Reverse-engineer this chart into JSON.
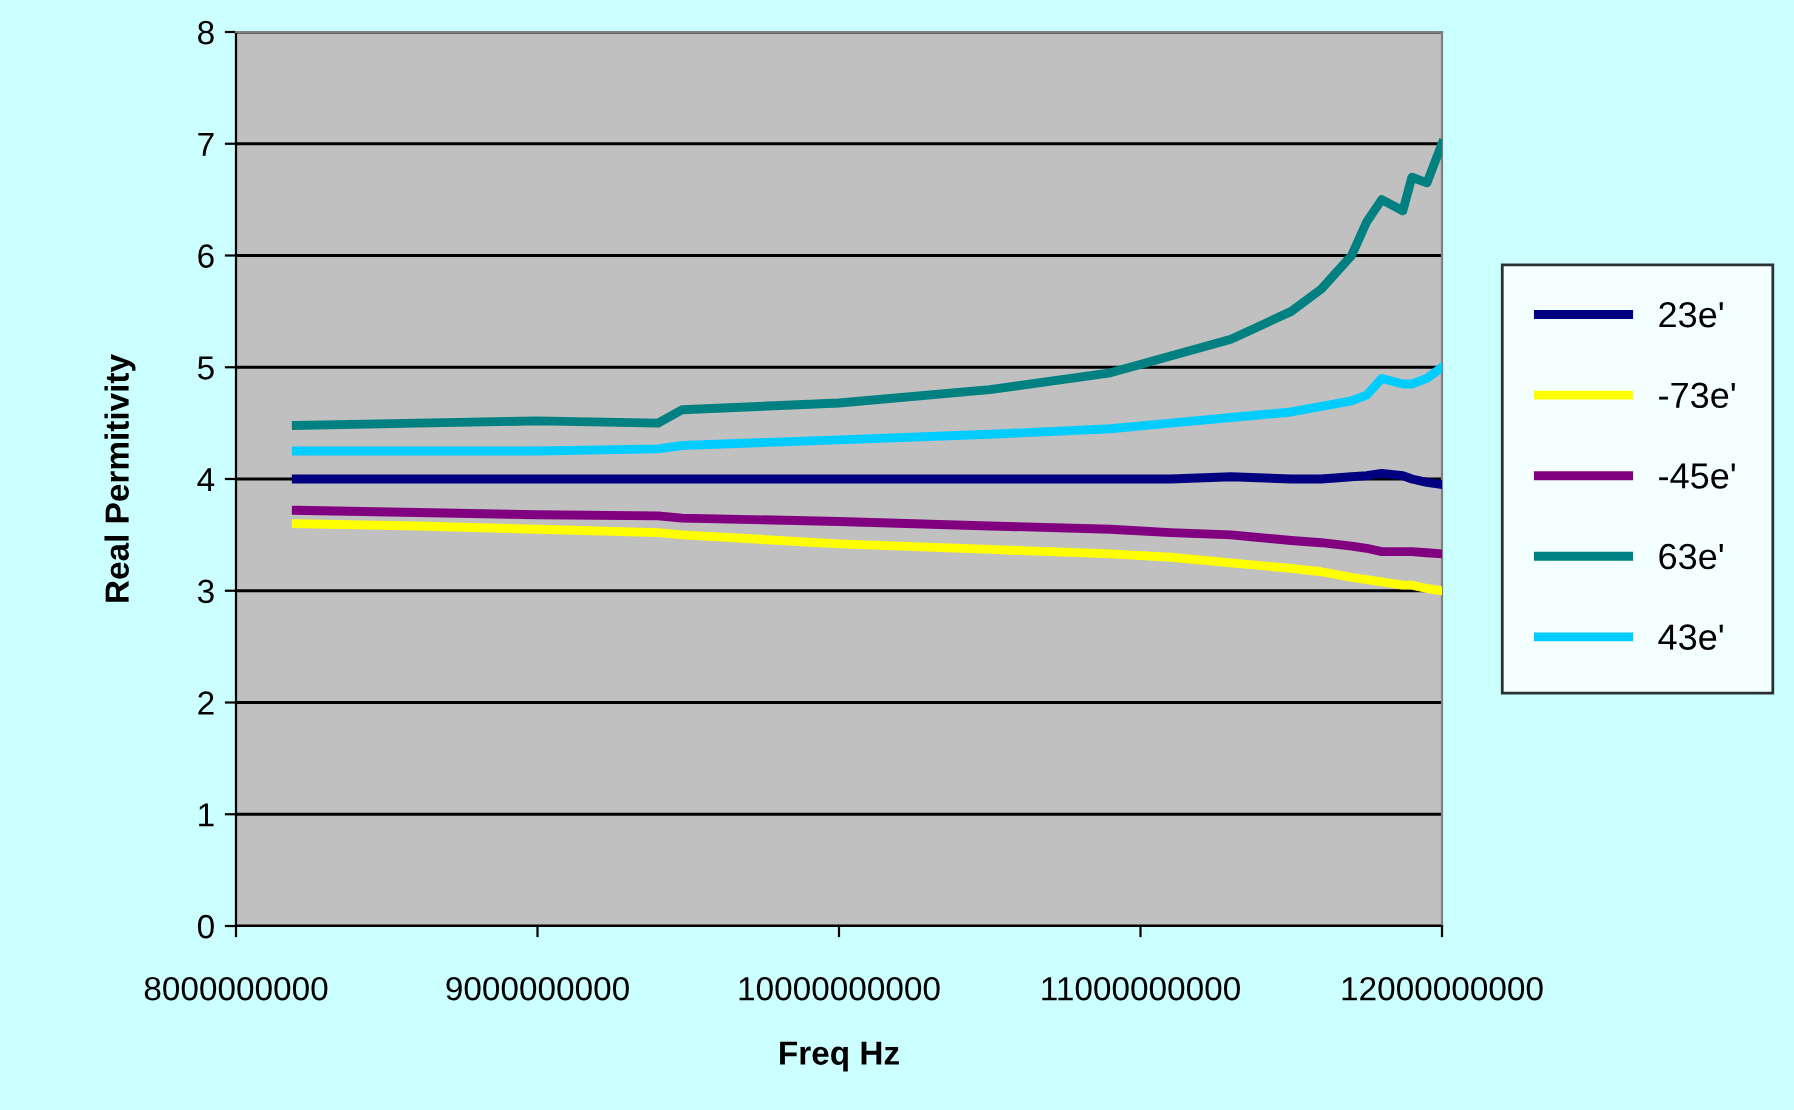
{
  "chart_data": {
    "type": "line",
    "xlabel": "Freq Hz",
    "ylabel": "Real Permitivity",
    "x": [
      8200000000,
      8600000000,
      9000000000,
      9400000000,
      9480000000,
      10000000000,
      10500000000,
      10900000000,
      11100000000,
      11300000000,
      11500000000,
      11600000000,
      11700000000,
      11750000000,
      11800000000,
      11870000000,
      11900000000,
      11950000000,
      12000000000
    ],
    "series": [
      {
        "name": "23e'",
        "color": "#000080",
        "values": [
          4.0,
          4.0,
          4.0,
          4.0,
          4.0,
          4.0,
          4.0,
          4.0,
          4.0,
          4.02,
          4.0,
          4.0,
          4.02,
          4.03,
          4.05,
          4.03,
          4.0,
          3.97,
          3.95
        ]
      },
      {
        "name": "-73e'",
        "color": "#ffff00",
        "values": [
          3.6,
          3.58,
          3.55,
          3.52,
          3.5,
          3.42,
          3.37,
          3.33,
          3.3,
          3.25,
          3.2,
          3.17,
          3.12,
          3.1,
          3.08,
          3.05,
          3.05,
          3.02,
          3.0
        ]
      },
      {
        "name": "-45e'",
        "color": "#800080",
        "values": [
          3.72,
          3.7,
          3.68,
          3.67,
          3.65,
          3.62,
          3.58,
          3.55,
          3.52,
          3.5,
          3.45,
          3.43,
          3.4,
          3.38,
          3.35,
          3.35,
          3.35,
          3.34,
          3.33
        ]
      },
      {
        "name": "63e'",
        "color": "#008080",
        "values": [
          4.48,
          4.5,
          4.52,
          4.5,
          4.62,
          4.68,
          4.8,
          4.95,
          5.1,
          5.25,
          5.5,
          5.7,
          6.0,
          6.3,
          6.5,
          6.4,
          6.7,
          6.65,
          7.0
        ]
      },
      {
        "name": "43e'",
        "color": "#00ccff",
        "values": [
          4.25,
          4.25,
          4.25,
          4.27,
          4.3,
          4.35,
          4.4,
          4.45,
          4.5,
          4.55,
          4.6,
          4.65,
          4.7,
          4.75,
          4.9,
          4.85,
          4.85,
          4.9,
          5.0
        ]
      }
    ],
    "xlim": [
      8000000000,
      12000000000
    ],
    "xticks": [
      8000000000,
      9000000000,
      10000000000,
      11000000000,
      12000000000
    ],
    "ylim": [
      0,
      8
    ],
    "yticks": [
      0,
      1,
      2,
      3,
      4,
      5,
      6,
      7,
      8
    ],
    "grid": "y",
    "legend": "right",
    "marker": "none",
    "line_style": "solid"
  }
}
